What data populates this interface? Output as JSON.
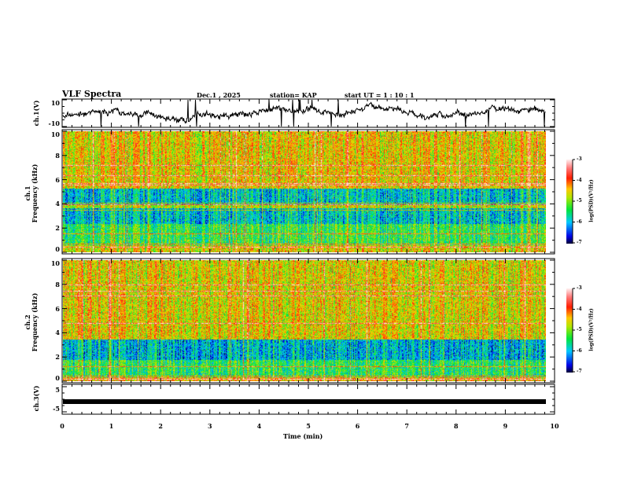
{
  "header": {
    "title": "VLF Spectra",
    "date": "Dec.1 , 2025",
    "station": "station= KAP",
    "start": "start  UT =   1 : 10 : 1"
  },
  "chart_data": [
    {
      "type": "line",
      "name": "ch1-waveform",
      "ylabel": "ch.1(V)",
      "ylim": [
        -10,
        10
      ],
      "yticks": [
        "10",
        "-10"
      ],
      "xlim": [
        0,
        10
      ],
      "data_end_min": 9.83
    },
    {
      "type": "heatmap",
      "name": "ch1-spectrogram",
      "ylabel": "ch.1\nFrequency (kHz)",
      "ylabel_top": "ch.1",
      "ylabel_main": "Frequency (kHz)",
      "ylim": [
        0,
        10
      ],
      "yticks": [
        "0",
        "2",
        "4",
        "6",
        "8",
        "10"
      ],
      "xlim": [
        0,
        10
      ],
      "colorbar": {
        "label": "log(PSD)(V²/Hz)",
        "range": [
          -7,
          -3
        ],
        "ticks": [
          "-3",
          "-4",
          "-5",
          "-6",
          "-7"
        ]
      }
    },
    {
      "type": "heatmap",
      "name": "ch2-spectrogram",
      "ylabel_top": "ch.2",
      "ylabel_main": "Frequency (kHz)",
      "ylim": [
        0,
        10
      ],
      "yticks": [
        "0",
        "2",
        "4",
        "6",
        "8",
        "10"
      ],
      "xlim": [
        0,
        10
      ],
      "colorbar": {
        "label": "log(PSD)(V²/Hz)",
        "range": [
          -7,
          -3
        ],
        "ticks": [
          "-3",
          "-4",
          "-5",
          "-6",
          "-7"
        ]
      }
    },
    {
      "type": "line",
      "name": "ch3-waveform",
      "ylabel": "ch.3(V)",
      "ylim": [
        -5,
        5
      ],
      "yticks": [
        "5",
        "-5"
      ],
      "approx_value": 1.5,
      "xlabel": "Time (min)",
      "xlim": [
        0,
        10
      ],
      "xticks": [
        "0",
        "1",
        "2",
        "3",
        "4",
        "5",
        "6",
        "7",
        "8",
        "9",
        "10"
      ]
    }
  ]
}
